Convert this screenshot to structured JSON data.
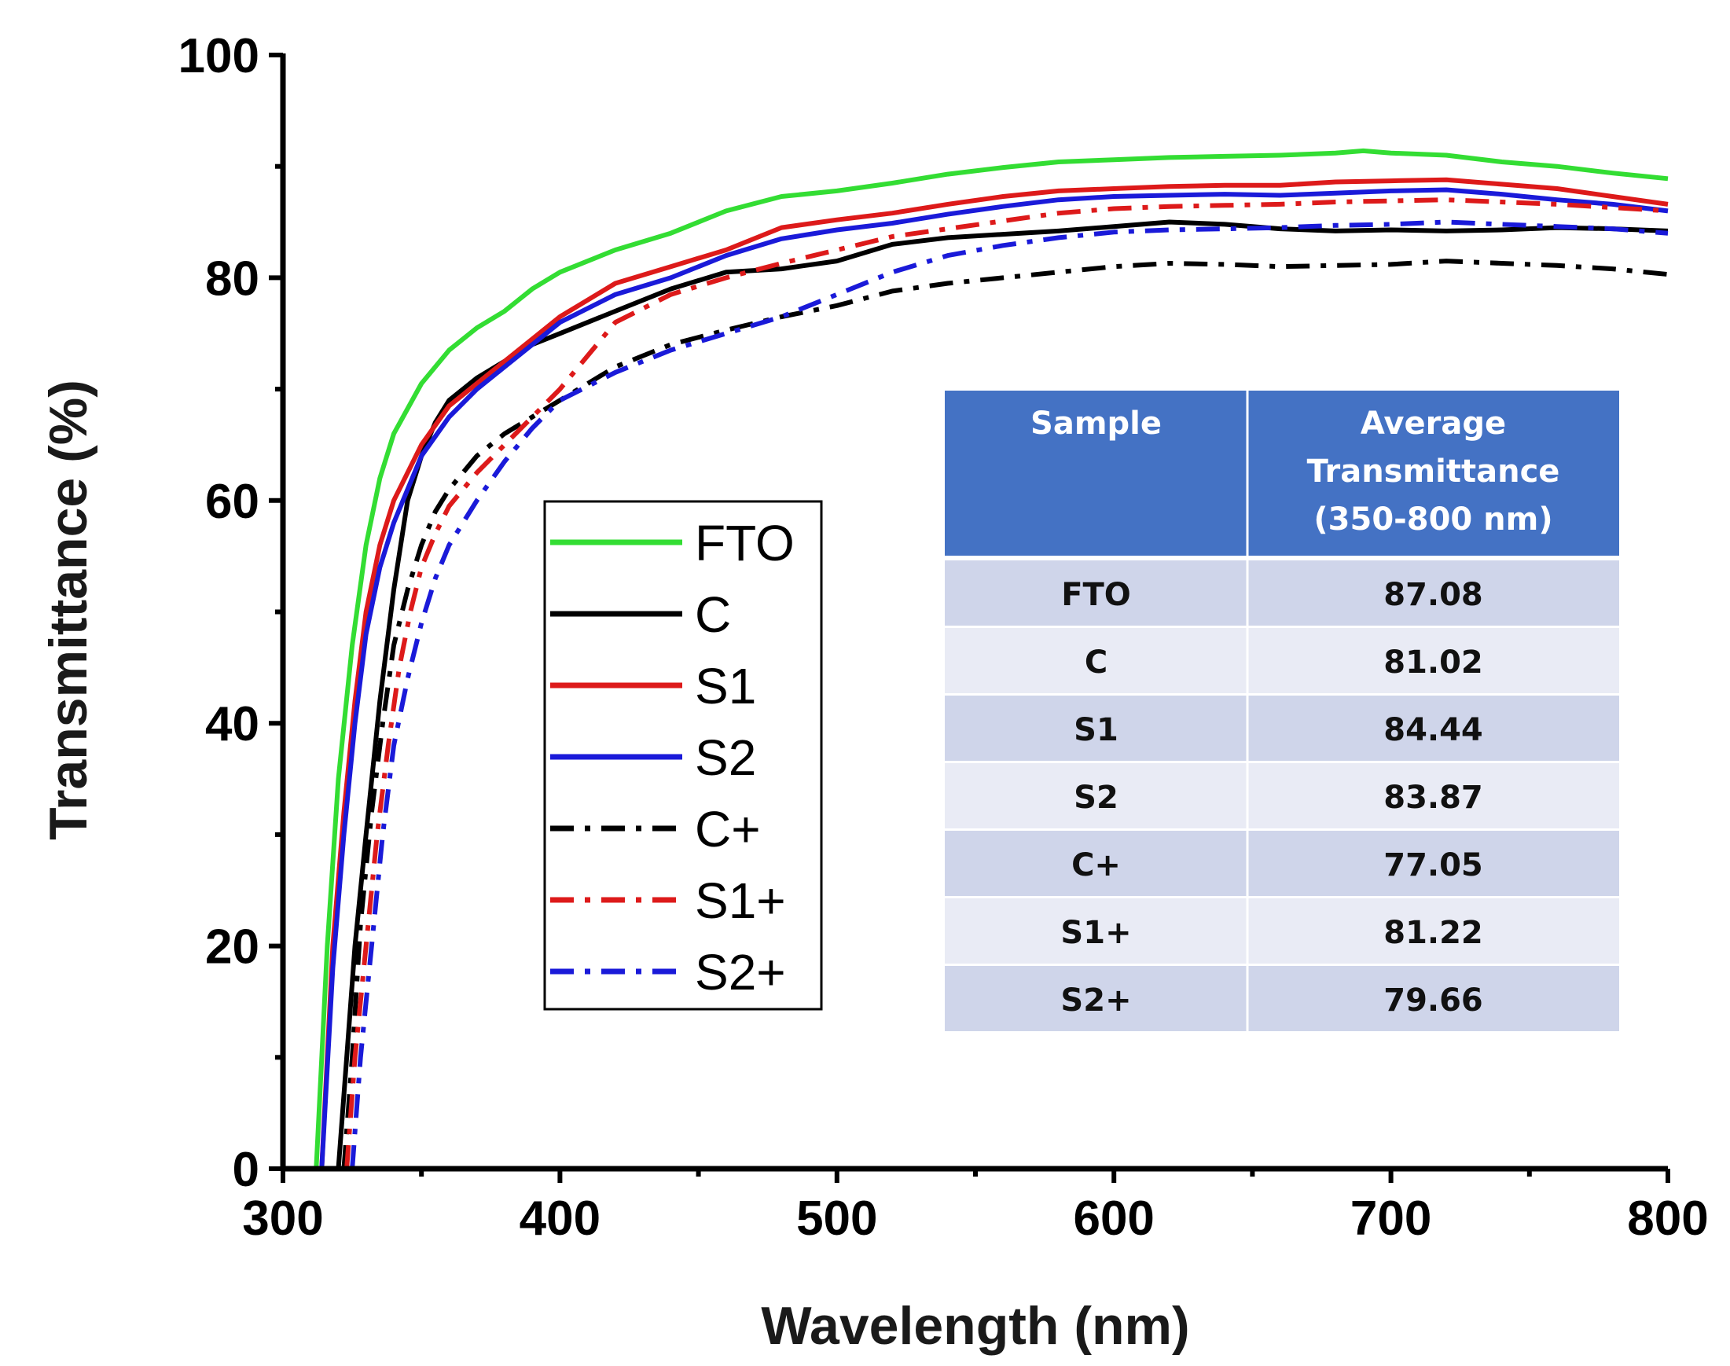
{
  "chart_data": {
    "type": "line",
    "xlabel": "Wavelength (nm)",
    "ylabel": "Transmittance (%)",
    "xlim": [
      300,
      800
    ],
    "ylim": [
      0,
      100
    ],
    "x_ticks": [
      300,
      400,
      500,
      600,
      700,
      800
    ],
    "y_ticks": [
      0,
      20,
      40,
      60,
      80,
      100
    ],
    "legend_position": "center-left",
    "series": [
      {
        "name": "FTO",
        "color": "#33dd33",
        "style": "solid",
        "points": [
          [
            312,
            0
          ],
          [
            316,
            20
          ],
          [
            320,
            35
          ],
          [
            325,
            47
          ],
          [
            330,
            56
          ],
          [
            335,
            62
          ],
          [
            340,
            66
          ],
          [
            350,
            70.5
          ],
          [
            360,
            73.5
          ],
          [
            370,
            75.5
          ],
          [
            380,
            77
          ],
          [
            390,
            79
          ],
          [
            400,
            80.5
          ],
          [
            420,
            82.5
          ],
          [
            440,
            84
          ],
          [
            460,
            86
          ],
          [
            480,
            87.3
          ],
          [
            500,
            87.8
          ],
          [
            520,
            88.5
          ],
          [
            540,
            89.3
          ],
          [
            560,
            89.9
          ],
          [
            580,
            90.4
          ],
          [
            600,
            90.6
          ],
          [
            620,
            90.8
          ],
          [
            640,
            90.9
          ],
          [
            660,
            91
          ],
          [
            680,
            91.2
          ],
          [
            690,
            91.4
          ],
          [
            700,
            91.2
          ],
          [
            720,
            91
          ],
          [
            740,
            90.4
          ],
          [
            760,
            90
          ],
          [
            780,
            89.4
          ],
          [
            800,
            88.9
          ]
        ]
      },
      {
        "name": "C",
        "color": "#000000",
        "style": "solid",
        "points": [
          [
            320,
            0
          ],
          [
            323,
            10
          ],
          [
            326,
            20
          ],
          [
            330,
            30
          ],
          [
            335,
            42
          ],
          [
            340,
            52
          ],
          [
            345,
            60
          ],
          [
            350,
            64
          ],
          [
            355,
            67
          ],
          [
            360,
            69
          ],
          [
            370,
            71
          ],
          [
            380,
            72.5
          ],
          [
            390,
            74
          ],
          [
            400,
            75
          ],
          [
            420,
            77
          ],
          [
            440,
            79
          ],
          [
            460,
            80.5
          ],
          [
            480,
            80.8
          ],
          [
            500,
            81.5
          ],
          [
            520,
            83
          ],
          [
            540,
            83.6
          ],
          [
            560,
            83.9
          ],
          [
            580,
            84.2
          ],
          [
            600,
            84.6
          ],
          [
            620,
            85
          ],
          [
            640,
            84.8
          ],
          [
            660,
            84.4
          ],
          [
            680,
            84.2
          ],
          [
            700,
            84.3
          ],
          [
            720,
            84.2
          ],
          [
            740,
            84.3
          ],
          [
            760,
            84.5
          ],
          [
            780,
            84.4
          ],
          [
            800,
            84.2
          ]
        ]
      },
      {
        "name": "S1",
        "color": "#dd1a1a",
        "style": "solid",
        "points": [
          [
            314,
            0
          ],
          [
            318,
            20
          ],
          [
            322,
            32
          ],
          [
            326,
            42
          ],
          [
            330,
            50
          ],
          [
            335,
            56
          ],
          [
            340,
            60
          ],
          [
            350,
            65
          ],
          [
            360,
            68.5
          ],
          [
            370,
            70.5
          ],
          [
            380,
            72.5
          ],
          [
            390,
            74.5
          ],
          [
            400,
            76.5
          ],
          [
            420,
            79.5
          ],
          [
            440,
            81
          ],
          [
            460,
            82.5
          ],
          [
            480,
            84.5
          ],
          [
            500,
            85.2
          ],
          [
            520,
            85.8
          ],
          [
            540,
            86.6
          ],
          [
            560,
            87.3
          ],
          [
            580,
            87.8
          ],
          [
            600,
            88
          ],
          [
            620,
            88.2
          ],
          [
            640,
            88.3
          ],
          [
            660,
            88.3
          ],
          [
            680,
            88.6
          ],
          [
            700,
            88.7
          ],
          [
            720,
            88.8
          ],
          [
            740,
            88.4
          ],
          [
            760,
            88
          ],
          [
            780,
            87.3
          ],
          [
            800,
            86.6
          ]
        ]
      },
      {
        "name": "S2",
        "color": "#1a1ad9",
        "style": "solid",
        "points": [
          [
            314,
            0
          ],
          [
            318,
            18
          ],
          [
            322,
            30
          ],
          [
            326,
            40
          ],
          [
            330,
            48
          ],
          [
            335,
            54
          ],
          [
            340,
            58
          ],
          [
            350,
            64
          ],
          [
            360,
            67.5
          ],
          [
            370,
            70
          ],
          [
            380,
            72
          ],
          [
            390,
            74
          ],
          [
            400,
            76
          ],
          [
            420,
            78.5
          ],
          [
            440,
            80
          ],
          [
            460,
            82
          ],
          [
            480,
            83.5
          ],
          [
            500,
            84.3
          ],
          [
            520,
            84.9
          ],
          [
            540,
            85.7
          ],
          [
            560,
            86.4
          ],
          [
            580,
            87
          ],
          [
            600,
            87.3
          ],
          [
            620,
            87.4
          ],
          [
            640,
            87.5
          ],
          [
            660,
            87.4
          ],
          [
            680,
            87.6
          ],
          [
            700,
            87.8
          ],
          [
            720,
            87.9
          ],
          [
            740,
            87.5
          ],
          [
            760,
            87
          ],
          [
            780,
            86.6
          ],
          [
            800,
            86
          ]
        ]
      },
      {
        "name": "C+",
        "color": "#000000",
        "style": "dashdot",
        "points": [
          [
            322,
            0
          ],
          [
            325,
            10
          ],
          [
            328,
            22
          ],
          [
            332,
            32
          ],
          [
            336,
            40
          ],
          [
            340,
            47
          ],
          [
            345,
            52
          ],
          [
            350,
            56
          ],
          [
            355,
            59
          ],
          [
            360,
            61
          ],
          [
            370,
            64
          ],
          [
            380,
            66
          ],
          [
            390,
            67.5
          ],
          [
            400,
            69
          ],
          [
            420,
            72
          ],
          [
            440,
            74
          ],
          [
            460,
            75.3
          ],
          [
            480,
            76.5
          ],
          [
            500,
            77.5
          ],
          [
            520,
            78.8
          ],
          [
            540,
            79.5
          ],
          [
            560,
            80
          ],
          [
            580,
            80.5
          ],
          [
            600,
            81
          ],
          [
            620,
            81.3
          ],
          [
            640,
            81.2
          ],
          [
            660,
            81
          ],
          [
            680,
            81.1
          ],
          [
            700,
            81.2
          ],
          [
            720,
            81.5
          ],
          [
            740,
            81.3
          ],
          [
            760,
            81.1
          ],
          [
            780,
            80.8
          ],
          [
            800,
            80.3
          ]
        ]
      },
      {
        "name": "S1+",
        "color": "#dd1a1a",
        "style": "dashdot",
        "points": [
          [
            323,
            0
          ],
          [
            326,
            10
          ],
          [
            330,
            20
          ],
          [
            334,
            30
          ],
          [
            338,
            38
          ],
          [
            342,
            45
          ],
          [
            346,
            50
          ],
          [
            350,
            54
          ],
          [
            355,
            57
          ],
          [
            360,
            59.5
          ],
          [
            370,
            62.5
          ],
          [
            380,
            65
          ],
          [
            390,
            67.5
          ],
          [
            400,
            70
          ],
          [
            420,
            76
          ],
          [
            440,
            78.5
          ],
          [
            460,
            80
          ],
          [
            480,
            81.3
          ],
          [
            500,
            82.5
          ],
          [
            520,
            83.7
          ],
          [
            540,
            84.4
          ],
          [
            560,
            85.1
          ],
          [
            580,
            85.8
          ],
          [
            600,
            86.2
          ],
          [
            620,
            86.4
          ],
          [
            640,
            86.5
          ],
          [
            660,
            86.6
          ],
          [
            680,
            86.8
          ],
          [
            700,
            86.9
          ],
          [
            720,
            87
          ],
          [
            740,
            86.8
          ],
          [
            760,
            86.6
          ],
          [
            780,
            86.3
          ],
          [
            800,
            86
          ]
        ]
      },
      {
        "name": "S2+",
        "color": "#1a1ad9",
        "style": "dashdot",
        "points": [
          [
            325,
            0
          ],
          [
            328,
            10
          ],
          [
            332,
            20
          ],
          [
            336,
            30
          ],
          [
            340,
            38
          ],
          [
            345,
            44
          ],
          [
            350,
            49
          ],
          [
            355,
            53
          ],
          [
            360,
            56
          ],
          [
            370,
            60
          ],
          [
            380,
            63.5
          ],
          [
            390,
            66.5
          ],
          [
            400,
            69
          ],
          [
            420,
            71.5
          ],
          [
            440,
            73.5
          ],
          [
            460,
            75
          ],
          [
            480,
            76.5
          ],
          [
            500,
            78.5
          ],
          [
            520,
            80.5
          ],
          [
            540,
            82
          ],
          [
            560,
            82.9
          ],
          [
            580,
            83.6
          ],
          [
            600,
            84.1
          ],
          [
            620,
            84.3
          ],
          [
            640,
            84.4
          ],
          [
            660,
            84.5
          ],
          [
            680,
            84.7
          ],
          [
            700,
            84.8
          ],
          [
            720,
            85
          ],
          [
            740,
            84.8
          ],
          [
            760,
            84.6
          ],
          [
            780,
            84.4
          ],
          [
            800,
            84
          ]
        ]
      }
    ],
    "inset_table": {
      "headers": [
        "Sample",
        "Average Transmittance (350-800 nm)"
      ],
      "header_lines": [
        [
          "Sample"
        ],
        [
          "Average",
          "Transmittance",
          "(350-800 nm)"
        ]
      ],
      "rows": [
        [
          "FTO",
          "87.08"
        ],
        [
          "C",
          "81.02"
        ],
        [
          "S1",
          "84.44"
        ],
        [
          "S2",
          "83.87"
        ],
        [
          "C+",
          "77.05"
        ],
        [
          "S1+",
          "81.22"
        ],
        [
          "S2+",
          "79.66"
        ]
      ]
    },
    "colors": {
      "table_header": "#4472c4",
      "table_row_a": "#cfd5ea",
      "table_row_b": "#e9ebf5"
    }
  }
}
